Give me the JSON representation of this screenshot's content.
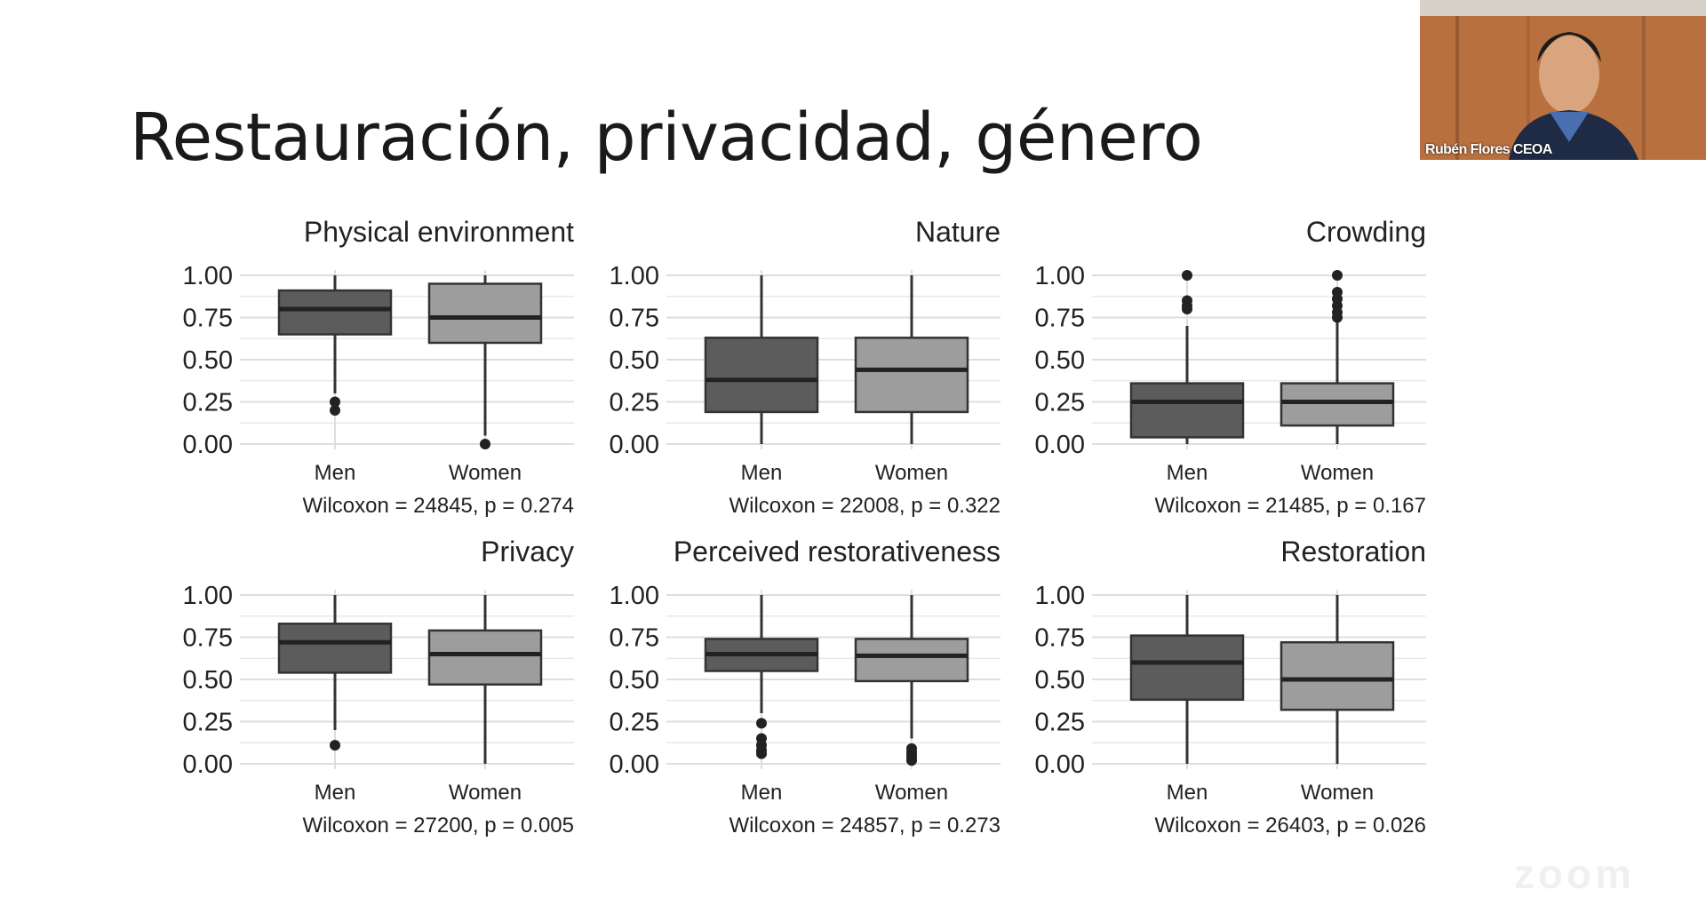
{
  "slide": {
    "title": "Restauración, privacidad, género"
  },
  "video": {
    "participant_name": "Rubén Flores CEOA"
  },
  "watermark": "zoom",
  "colors": {
    "men": "#5c5c5c",
    "women": "#9d9d9d",
    "grid": "#dedede",
    "ink": "#222222"
  },
  "chart_data": [
    {
      "type": "box",
      "title": "Physical environment",
      "categories": [
        "Men",
        "Women"
      ],
      "yticks": [
        "1.00",
        "0.75",
        "0.50",
        "0.25",
        "0.00"
      ],
      "ylim": [
        0,
        1
      ],
      "boxes": [
        {
          "group": "Men",
          "min": 0.3,
          "q1": 0.65,
          "median": 0.8,
          "q3": 0.91,
          "max": 1.0,
          "outliers": [
            0.25,
            0.2
          ]
        },
        {
          "group": "Women",
          "min": 0.05,
          "q1": 0.6,
          "median": 0.75,
          "q3": 0.95,
          "max": 1.0,
          "outliers": [
            0.0
          ]
        }
      ],
      "caption": "Wilcoxon = 24845, p = 0.274"
    },
    {
      "type": "box",
      "title": "Nature",
      "categories": [
        "Men",
        "Women"
      ],
      "yticks": [
        "1.00",
        "0.75",
        "0.50",
        "0.25",
        "0.00"
      ],
      "ylim": [
        0,
        1
      ],
      "boxes": [
        {
          "group": "Men",
          "min": 0.0,
          "q1": 0.19,
          "median": 0.38,
          "q3": 0.63,
          "max": 1.0,
          "outliers": []
        },
        {
          "group": "Women",
          "min": 0.0,
          "q1": 0.19,
          "median": 0.44,
          "q3": 0.63,
          "max": 1.0,
          "outliers": []
        }
      ],
      "caption": "Wilcoxon = 22008, p = 0.322"
    },
    {
      "type": "box",
      "title": "Crowding",
      "categories": [
        "Men",
        "Women"
      ],
      "yticks": [
        "1.00",
        "0.75",
        "0.50",
        "0.25",
        "0.00"
      ],
      "ylim": [
        0,
        1
      ],
      "boxes": [
        {
          "group": "Men",
          "min": 0.0,
          "q1": 0.04,
          "median": 0.25,
          "q3": 0.36,
          "max": 0.7,
          "outliers": [
            1.0,
            0.85,
            0.82,
            0.8
          ]
        },
        {
          "group": "Women",
          "min": 0.0,
          "q1": 0.11,
          "median": 0.25,
          "q3": 0.36,
          "max": 0.72,
          "outliers": [
            1.0,
            0.9,
            0.86,
            0.82,
            0.78,
            0.75
          ]
        }
      ],
      "caption": "Wilcoxon = 21485, p = 0.167"
    },
    {
      "type": "box",
      "title": "Privacy",
      "categories": [
        "Men",
        "Women"
      ],
      "yticks": [
        "1.00",
        "0.75",
        "0.50",
        "0.25",
        "0.00"
      ],
      "ylim": [
        0,
        1
      ],
      "boxes": [
        {
          "group": "Men",
          "min": 0.2,
          "q1": 0.54,
          "median": 0.72,
          "q3": 0.83,
          "max": 1.0,
          "outliers": [
            0.11
          ]
        },
        {
          "group": "Women",
          "min": 0.0,
          "q1": 0.47,
          "median": 0.65,
          "q3": 0.79,
          "max": 1.0,
          "outliers": []
        }
      ],
      "caption": "Wilcoxon = 27200, p = 0.005"
    },
    {
      "type": "box",
      "title": "Perceived restorativeness",
      "categories": [
        "Men",
        "Women"
      ],
      "yticks": [
        "1.00",
        "0.75",
        "0.50",
        "0.25",
        "0.00"
      ],
      "ylim": [
        0,
        1
      ],
      "boxes": [
        {
          "group": "Men",
          "min": 0.3,
          "q1": 0.55,
          "median": 0.65,
          "q3": 0.74,
          "max": 1.0,
          "outliers": [
            0.24,
            0.15,
            0.11,
            0.08,
            0.06
          ]
        },
        {
          "group": "Women",
          "min": 0.15,
          "q1": 0.49,
          "median": 0.64,
          "q3": 0.74,
          "max": 1.0,
          "outliers": [
            0.09,
            0.07,
            0.05,
            0.03,
            0.02
          ]
        }
      ],
      "caption": "Wilcoxon = 24857, p = 0.273"
    },
    {
      "type": "box",
      "title": "Restoration",
      "categories": [
        "Men",
        "Women"
      ],
      "yticks": [
        "1.00",
        "0.75",
        "0.50",
        "0.25",
        "0.00"
      ],
      "ylim": [
        0,
        1
      ],
      "boxes": [
        {
          "group": "Men",
          "min": 0.0,
          "q1": 0.38,
          "median": 0.6,
          "q3": 0.76,
          "max": 1.0,
          "outliers": []
        },
        {
          "group": "Women",
          "min": 0.0,
          "q1": 0.32,
          "median": 0.5,
          "q3": 0.72,
          "max": 1.0,
          "outliers": []
        }
      ],
      "caption": "Wilcoxon = 26403, p = 0.026"
    }
  ]
}
